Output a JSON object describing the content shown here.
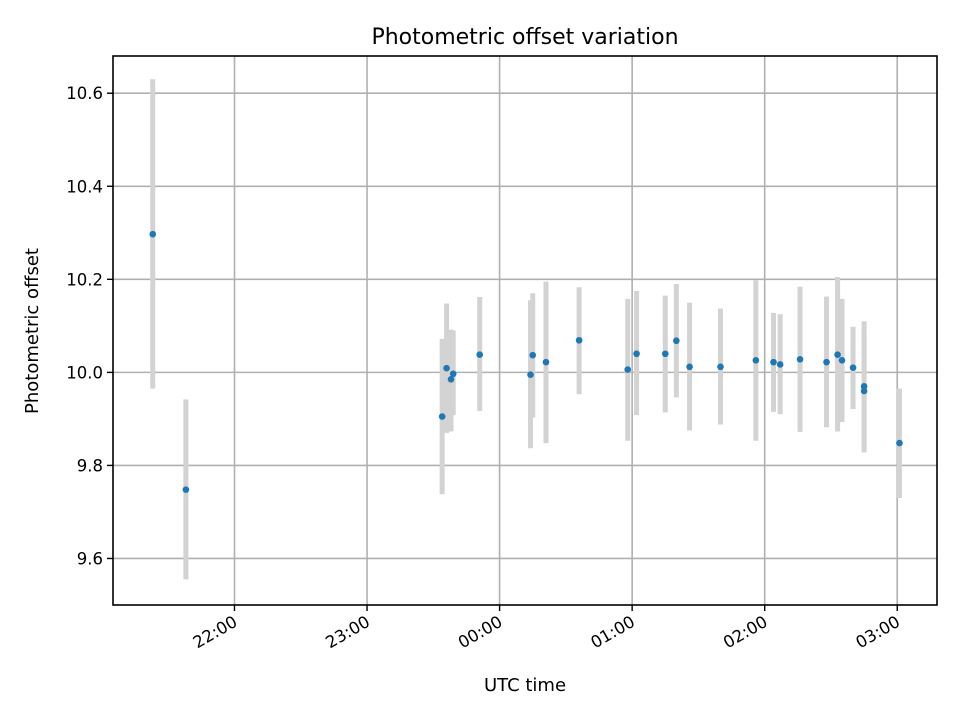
{
  "chart_data": {
    "type": "scatter",
    "title": "Photometric offset variation",
    "xlabel": "UTC time",
    "ylabel": "Photometric offset",
    "x_axis": "time",
    "xlim": [
      "21:05",
      "03:18"
    ],
    "ylim": [
      9.5,
      10.68
    ],
    "x_ticks": [
      "22:00",
      "23:00",
      "00:00",
      "01:00",
      "02:00",
      "03:00"
    ],
    "y_ticks": [
      9.6,
      9.8,
      10.0,
      10.2,
      10.4,
      10.6
    ],
    "grid": true,
    "colors": {
      "marker": "#1f77b4",
      "errorbar": "#d3d3d3",
      "grid": "#b0b0b0"
    },
    "points": [
      {
        "time": "21:23",
        "y": 10.297,
        "ylow": 9.965,
        "yhigh": 10.63
      },
      {
        "time": "21:38",
        "y": 9.748,
        "ylow": 9.555,
        "yhigh": 9.942
      },
      {
        "time": "23:34",
        "y": 9.905,
        "ylow": 9.738,
        "yhigh": 10.072
      },
      {
        "time": "23:36",
        "y": 10.009,
        "ylow": 9.87,
        "yhigh": 10.148
      },
      {
        "time": "23:38",
        "y": 9.985,
        "ylow": 9.873,
        "yhigh": 10.092
      },
      {
        "time": "23:39",
        "y": 9.997,
        "ylow": 9.908,
        "yhigh": 10.09
      },
      {
        "time": "23:51",
        "y": 10.038,
        "ylow": 9.917,
        "yhigh": 10.162
      },
      {
        "time": "00:14",
        "y": 9.995,
        "ylow": 9.837,
        "yhigh": 10.155
      },
      {
        "time": "00:15",
        "y": 10.037,
        "ylow": 9.903,
        "yhigh": 10.17
      },
      {
        "time": "00:21",
        "y": 10.022,
        "ylow": 9.848,
        "yhigh": 10.195
      },
      {
        "time": "00:36",
        "y": 10.069,
        "ylow": 9.953,
        "yhigh": 10.183
      },
      {
        "time": "00:58",
        "y": 10.006,
        "ylow": 9.853,
        "yhigh": 10.158
      },
      {
        "time": "01:02",
        "y": 10.04,
        "ylow": 9.908,
        "yhigh": 10.175
      },
      {
        "time": "01:15",
        "y": 10.04,
        "ylow": 9.914,
        "yhigh": 10.165
      },
      {
        "time": "01:20",
        "y": 10.068,
        "ylow": 9.946,
        "yhigh": 10.19
      },
      {
        "time": "01:26",
        "y": 10.012,
        "ylow": 9.875,
        "yhigh": 10.15
      },
      {
        "time": "01:40",
        "y": 10.012,
        "ylow": 9.888,
        "yhigh": 10.137
      },
      {
        "time": "01:56",
        "y": 10.026,
        "ylow": 9.853,
        "yhigh": 10.198
      },
      {
        "time": "02:04",
        "y": 10.022,
        "ylow": 9.915,
        "yhigh": 10.128
      },
      {
        "time": "02:07",
        "y": 10.017,
        "ylow": 9.91,
        "yhigh": 10.125
      },
      {
        "time": "02:16",
        "y": 10.028,
        "ylow": 9.872,
        "yhigh": 10.184
      },
      {
        "time": "02:28",
        "y": 10.022,
        "ylow": 9.882,
        "yhigh": 10.163
      },
      {
        "time": "02:33",
        "y": 10.038,
        "ylow": 9.873,
        "yhigh": 10.205
      },
      {
        "time": "02:35",
        "y": 10.026,
        "ylow": 9.893,
        "yhigh": 10.158
      },
      {
        "time": "02:40",
        "y": 10.01,
        "ylow": 9.921,
        "yhigh": 10.098
      },
      {
        "time": "02:45",
        "y": 9.97,
        "ylow": 9.828,
        "yhigh": 10.11
      },
      {
        "time": "02:45",
        "y": 9.96,
        "ylow": 9.84,
        "yhigh": 10.09
      },
      {
        "time": "03:01",
        "y": 9.848,
        "ylow": 9.73,
        "yhigh": 9.965
      }
    ]
  }
}
